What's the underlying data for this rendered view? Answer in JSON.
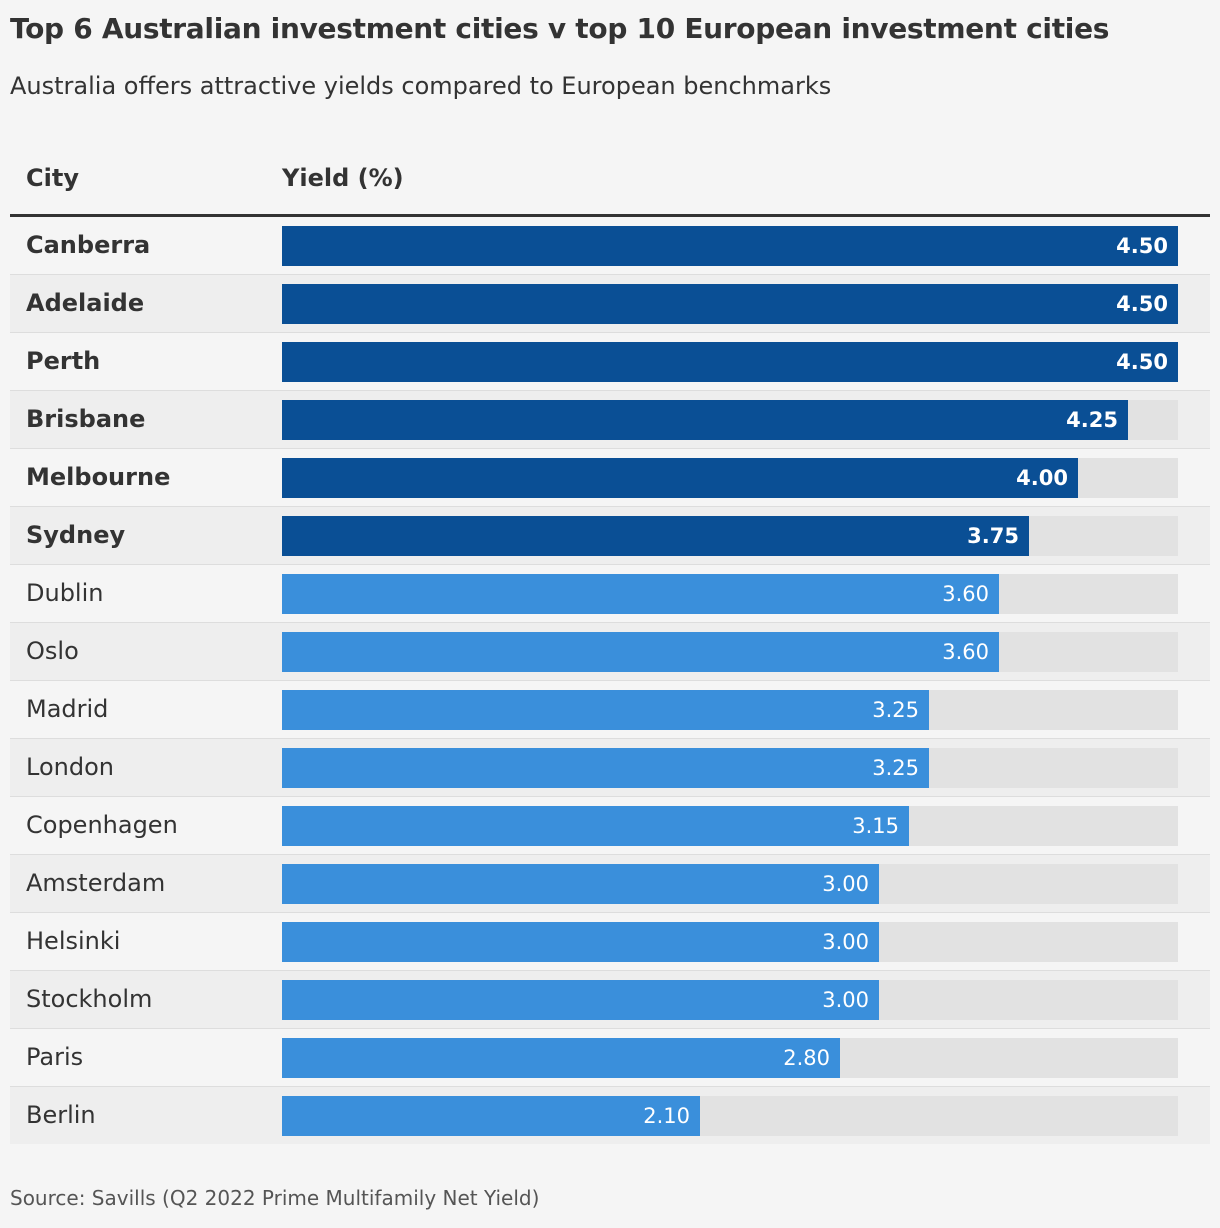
{
  "title": "Top 6 Australian investment cities v top 10 European investment cities",
  "subtitle": "Australia offers attractive yields compared to European benchmarks",
  "source": "Source: Savills (Q2 2022 Prime Multifamily Net Yield)",
  "colors": {
    "australia": "#0a4f95",
    "europe": "#3a8fdb",
    "track": "#e2e2e2"
  },
  "chart_data": {
    "type": "bar",
    "orientation": "horizontal",
    "title": "Top 6 Australian investment cities v top 10 European investment cities",
    "subtitle": "Australia offers attractive yields compared to European benchmarks",
    "columns": [
      "City",
      "Yield (%)"
    ],
    "xlim": [
      0,
      4.5
    ],
    "categories": [
      "Canberra",
      "Adelaide",
      "Perth",
      "Brisbane",
      "Melbourne",
      "Sydney",
      "Dublin",
      "Oslo",
      "Madrid",
      "London",
      "Copenhagen",
      "Amsterdam",
      "Helsinki",
      "Stockholm",
      "Paris",
      "Berlin"
    ],
    "values": [
      4.5,
      4.5,
      4.5,
      4.25,
      4.0,
      3.75,
      3.6,
      3.6,
      3.25,
      3.25,
      3.15,
      3.0,
      3.0,
      3.0,
      2.8,
      2.1
    ],
    "labels": [
      "4.50",
      "4.50",
      "4.50",
      "4.25",
      "4.00",
      "3.75",
      "3.60",
      "3.60",
      "3.25",
      "3.25",
      "3.15",
      "3.00",
      "3.00",
      "3.00",
      "2.80",
      "2.10"
    ],
    "groups": [
      "australia",
      "australia",
      "australia",
      "australia",
      "australia",
      "australia",
      "europe",
      "europe",
      "europe",
      "europe",
      "europe",
      "europe",
      "europe",
      "europe",
      "europe",
      "europe"
    ]
  }
}
